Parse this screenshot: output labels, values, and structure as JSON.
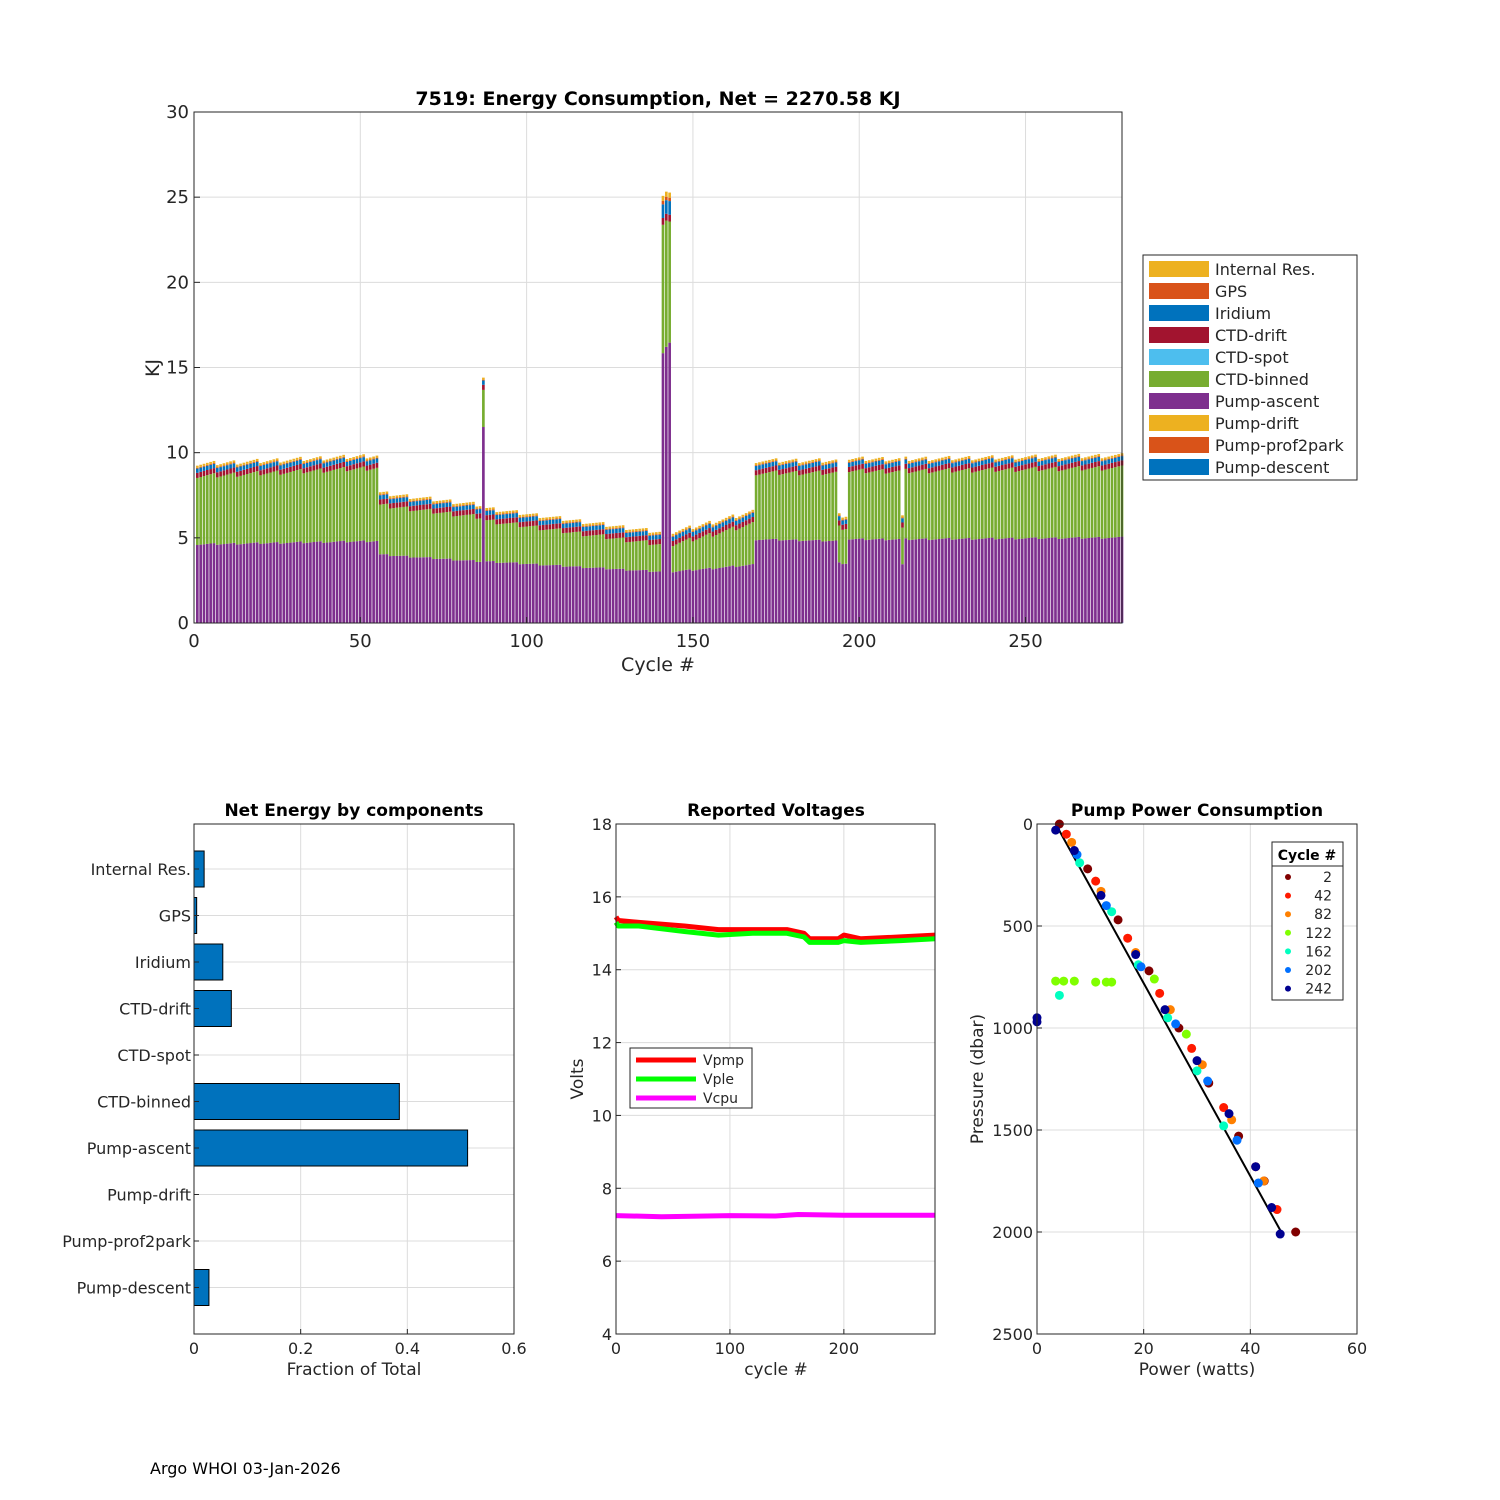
{
  "footer": "Argo WHOI 03-Jan-2026",
  "chart_data": [
    {
      "type": "stacked-bar",
      "title": "7519: Energy Consumption,  Net = 2270.58 KJ",
      "xlabel": "Cycle #",
      "ylabel": "KJ",
      "xlim": [
        0,
        279
      ],
      "ylim": [
        0,
        30
      ],
      "xticks": [
        0,
        50,
        100,
        150,
        200,
        250
      ],
      "yticks": [
        0,
        5,
        10,
        15,
        20,
        25,
        30
      ],
      "grid": true,
      "legend_position": "outside-right",
      "legend": [
        "Internal Res.",
        "GPS",
        "Iridium",
        "CTD-drift",
        "CTD-spot",
        "CTD-binned",
        "Pump-ascent",
        "Pump-drift",
        "Pump-prof2park",
        "Pump-descent"
      ],
      "colors": {
        "Internal Res.": "#EDB120",
        "GPS": "#D95319",
        "Iridium": "#0072BD",
        "CTD-drift": "#A2142F",
        "CTD-spot": "#4DBEEE",
        "CTD-binned": "#77AC30",
        "Pump-ascent": "#7E2F8E",
        "Pump-drift": "#EDB120",
        "Pump-prof2park": "#D95319",
        "Pump-descent": "#0072BD"
      },
      "segments": [
        {
          "from": 1,
          "to": 55,
          "pump_ascent": [
            4.6,
            4.8
          ],
          "ctd_binned": [
            4.0,
            4.3
          ]
        },
        {
          "from": 56,
          "to": 86,
          "pump_ascent": [
            4.0,
            3.6
          ],
          "ctd_binned": [
            2.9,
            2.6
          ]
        },
        {
          "from": 87,
          "to": 87,
          "pump_ascent": [
            11.5,
            11.5
          ],
          "ctd_binned": [
            2.2,
            2.2
          ]
        },
        {
          "from": 88,
          "to": 140,
          "pump_ascent": [
            3.6,
            3.0
          ],
          "ctd_binned": [
            2.4,
            1.6
          ]
        },
        {
          "from": 141,
          "to": 143,
          "pump_ascent": [
            15.8,
            16.5
          ],
          "ctd_binned": [
            7.5,
            7.2
          ]
        },
        {
          "from": 144,
          "to": 168,
          "pump_ascent": [
            3.0,
            3.4
          ],
          "ctd_binned": [
            1.6,
            2.4
          ]
        },
        {
          "from": 169,
          "to": 193,
          "pump_ascent": [
            4.9,
            4.8
          ],
          "ctd_binned": [
            3.9,
            4.0
          ]
        },
        {
          "from": 194,
          "to": 196,
          "pump_ascent": [
            3.5,
            3.5
          ],
          "ctd_binned": [
            2.1,
            2.1
          ]
        },
        {
          "from": 197,
          "to": 212,
          "pump_ascent": [
            4.9,
            4.9
          ],
          "ctd_binned": [
            4.0,
            4.0
          ]
        },
        {
          "from": 213,
          "to": 213,
          "pump_ascent": [
            3.4,
            3.4
          ],
          "ctd_binned": [
            2.1,
            2.1
          ]
        },
        {
          "from": 214,
          "to": 279,
          "pump_ascent": [
            4.9,
            5.0
          ],
          "ctd_binned": [
            4.0,
            4.1
          ]
        }
      ],
      "small_components": {
        "Pump-descent": 0.02,
        "Pump-prof2park": 0.0,
        "Pump-drift": 0.0,
        "CTD-spot": 0.0,
        "CTD-drift": 0.3,
        "Iridium": 0.25,
        "GPS": 0.05,
        "Internal Res.": 0.12
      }
    },
    {
      "type": "barh",
      "title": "Net Energy by components",
      "xlabel": "Fraction of Total",
      "xlim": [
        0,
        0.6
      ],
      "xticks": [
        0,
        0.2,
        0.4,
        0.6
      ],
      "categories": [
        "Internal Res.",
        "GPS",
        "Iridium",
        "CTD-drift",
        "CTD-spot",
        "CTD-binned",
        "Pump-ascent",
        "Pump-drift",
        "Pump-prof2park",
        "Pump-descent"
      ],
      "values": [
        0.019,
        0.005,
        0.054,
        0.07,
        0.0,
        0.385,
        0.513,
        0.0,
        0.0,
        0.028
      ],
      "color": "#0072BD",
      "grid": true
    },
    {
      "type": "line",
      "title": "Reported Voltages",
      "xlabel": "cycle #",
      "ylabel": "Volts",
      "xlim": [
        0,
        280
      ],
      "ylim": [
        4,
        18
      ],
      "xticks": [
        0,
        100,
        200
      ],
      "yticks": [
        4,
        6,
        8,
        10,
        12,
        14,
        16,
        18
      ],
      "legend_position": "center-left",
      "series": [
        {
          "name": "Vpmp",
          "color": "#FF0000",
          "x": [
            0,
            2,
            20,
            60,
            90,
            120,
            150,
            165,
            170,
            195,
            200,
            215,
            250,
            280
          ],
          "y": [
            15.45,
            15.35,
            15.3,
            15.2,
            15.1,
            15.1,
            15.1,
            15.0,
            14.85,
            14.85,
            14.95,
            14.85,
            14.9,
            14.95
          ]
        },
        {
          "name": "Vple",
          "color": "#00FF00",
          "x": [
            0,
            2,
            20,
            60,
            90,
            120,
            150,
            165,
            170,
            195,
            200,
            215,
            250,
            280
          ],
          "y": [
            15.3,
            15.2,
            15.2,
            15.05,
            14.95,
            15.0,
            15.0,
            14.9,
            14.75,
            14.75,
            14.8,
            14.75,
            14.8,
            14.85
          ]
        },
        {
          "name": "Vcpu",
          "color": "#FF00FF",
          "x": [
            0,
            40,
            100,
            140,
            160,
            200,
            280
          ],
          "y": [
            7.25,
            7.22,
            7.25,
            7.24,
            7.28,
            7.26,
            7.26
          ]
        }
      ]
    },
    {
      "type": "scatter",
      "title": "Pump Power Consumption",
      "xlabel": "Power (watts)",
      "ylabel": "Pressure (dbar)",
      "xlim": [
        0,
        60
      ],
      "ylim": [
        0,
        2500
      ],
      "y_reversed": true,
      "xticks": [
        0,
        20,
        40,
        60
      ],
      "yticks": [
        0,
        500,
        1000,
        1500,
        2000,
        2500
      ],
      "legend_title": "Cycle #",
      "legend_position": "top-right",
      "series": [
        {
          "name": "2",
          "color": "#800000",
          "x": [
            4.2,
            9.5,
            15.2,
            21,
            26.6,
            32.2,
            37.8,
            42.6,
            48.5
          ],
          "y": [
            0,
            220,
            470,
            720,
            1000,
            1270,
            1530,
            1750,
            2000
          ]
        },
        {
          "name": "42",
          "color": "#FF1A00",
          "x": [
            5.5,
            11,
            17,
            23,
            29,
            35,
            41,
            45
          ],
          "y": [
            50,
            280,
            560,
            830,
            1100,
            1390,
            1680,
            1890
          ]
        },
        {
          "name": "82",
          "color": "#FF8000",
          "x": [
            6.5,
            12,
            18.5,
            25,
            31,
            36.5,
            42.5
          ],
          "y": [
            90,
            330,
            630,
            910,
            1180,
            1450,
            1750
          ]
        },
        {
          "name": "122",
          "color": "#80FF00",
          "x": [
            3.5,
            5,
            7,
            11,
            13,
            14,
            22,
            28
          ],
          "y": [
            770,
            770,
            770,
            775,
            775,
            775,
            760,
            1030
          ]
        },
        {
          "name": "162",
          "color": "#00FFC0",
          "x": [
            4.2,
            8,
            14,
            19,
            24.5,
            30,
            35
          ],
          "y": [
            840,
            190,
            430,
            690,
            950,
            1210,
            1480
          ]
        },
        {
          "name": "202",
          "color": "#0070FF",
          "x": [
            7.5,
            13,
            19.5,
            26,
            32,
            37.5,
            41.5
          ],
          "y": [
            150,
            400,
            700,
            980,
            1260,
            1550,
            1760
          ]
        },
        {
          "name": "242",
          "color": "#000090",
          "x": [
            0,
            0,
            3.5,
            7,
            12,
            18.5,
            24,
            30,
            36,
            41,
            44,
            45.6
          ],
          "y": [
            950,
            970,
            30,
            130,
            350,
            640,
            910,
            1160,
            1420,
            1680,
            1880,
            2010
          ]
        }
      ],
      "trend_line": {
        "color": "#000000",
        "x": [
          3.5,
          46
        ],
        "y": [
          0,
          2010
        ]
      }
    }
  ]
}
